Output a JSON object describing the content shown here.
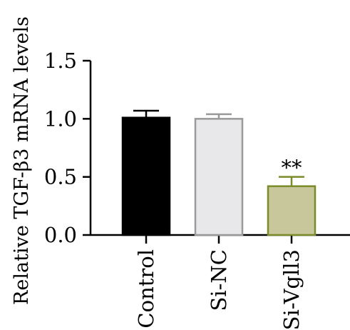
{
  "chart_data": {
    "type": "bar",
    "title": "",
    "xlabel": "",
    "ylabel": "Relative TGF-β3 mRNA levels",
    "ylim": [
      0,
      1.5
    ],
    "yticks": [
      "0.0",
      "0.5",
      "1.0",
      "1.5"
    ],
    "ytick_values": [
      0,
      0.5,
      1.0,
      1.5
    ],
    "categories": [
      "Control",
      "Si-NC",
      "Si-Vgll3"
    ],
    "values": [
      1.01,
      1.0,
      0.42
    ],
    "error_upper": [
      1.07,
      1.04,
      0.5
    ],
    "annotations": [
      "",
      "",
      "**"
    ],
    "colors": {
      "fill": [
        "#000000",
        "#e8e8ea",
        "#c7c79b"
      ],
      "stroke": [
        "#000000",
        "#9a9a9a",
        "#7b8b2a"
      ],
      "axis": "#000000"
    },
    "grid": false,
    "legend": "none"
  }
}
